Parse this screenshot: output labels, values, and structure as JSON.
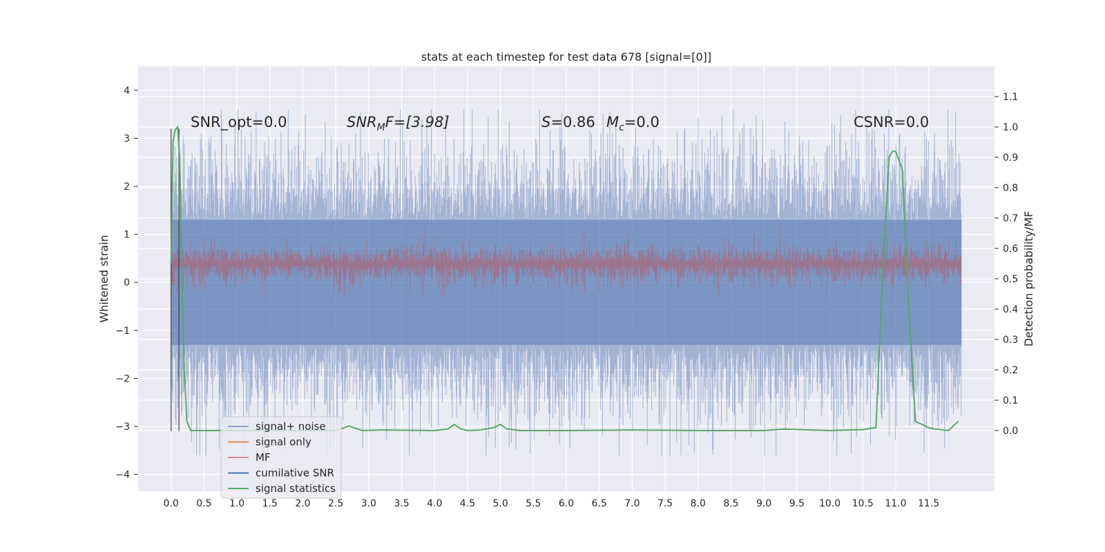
{
  "chart_data": {
    "type": "line",
    "title": "stats at each timestep for test data 678 [signal=[0]]",
    "ylabel": "Whitened strain",
    "ylabel_right": "Detection probability/MF",
    "x_ticks": [
      "0.0",
      "0.5",
      "1.0",
      "1.5",
      "2.0",
      "2.5",
      "3.0",
      "3.5",
      "4.0",
      "4.5",
      "5.0",
      "5.5",
      "6.0",
      "6.5",
      "7.0",
      "7.5",
      "8.0",
      "8.5",
      "9.0",
      "9.5",
      "10.0",
      "10.5",
      "11.0",
      "11.5"
    ],
    "xlim": [
      -0.5,
      12.5
    ],
    "ylim_left": [
      -4.35,
      4.5
    ],
    "y_ticks_left": [
      -4,
      -3,
      -2,
      -1,
      0,
      1,
      2,
      3,
      4
    ],
    "ylim_right": [
      -0.2,
      1.2
    ],
    "y_ticks_right": [
      "0.0",
      "0.1",
      "0.2",
      "0.3",
      "0.4",
      "0.5",
      "0.6",
      "0.7",
      "0.8",
      "0.9",
      "1.0",
      "1.1"
    ],
    "grid": true,
    "legend_position": "lower-left",
    "annotations": {
      "snr_opt": "SNR_opt=0.0",
      "snr_mf_label": "SNR",
      "snr_mf_sub": "M",
      "snr_mf_value": "F=[3.98]",
      "s_label": "S",
      "s_value": "=0.86",
      "mc_label": "M",
      "mc_sub": "c",
      "mc_value": "=0.0",
      "csnr": "CSNR=0.0"
    },
    "series": [
      {
        "name": "signal+ noise",
        "color": "#4c72b0",
        "x_range": [
          0,
          12
        ],
        "amplitude": "±3.5 (noise)"
      },
      {
        "name": "signal only",
        "color": "#dd8452",
        "values": []
      },
      {
        "name": "MF",
        "color": "#c44e52",
        "x_range": [
          0,
          12
        ],
        "approx_range_right_axis": [
          0.5,
          0.65
        ]
      },
      {
        "name": "cumilative SNR",
        "color": "#4c72b0",
        "values": []
      },
      {
        "name": "signal statistics",
        "color": "#55a868",
        "x": [
          0.0,
          0.03,
          0.06,
          0.1,
          0.13,
          0.16,
          0.2,
          0.24,
          0.3,
          0.5,
          1.0,
          2.0,
          2.5,
          2.7,
          2.9,
          3.2,
          4.0,
          4.2,
          4.3,
          4.4,
          4.5,
          4.7,
          4.9,
          5.0,
          5.1,
          5.3,
          6.0,
          7.0,
          8.0,
          9.0,
          9.3,
          9.6,
          10.0,
          10.3,
          10.5,
          10.7,
          10.8,
          10.9,
          10.95,
          11.0,
          11.1,
          11.2,
          11.3,
          11.5,
          11.6,
          11.8,
          11.95
        ],
        "values": [
          0.55,
          0.95,
          0.99,
          1.0,
          0.9,
          0.55,
          0.2,
          0.03,
          0.0,
          0.0,
          0.0,
          0.0,
          0.0,
          0.015,
          0.0,
          0.002,
          0.0,
          0.005,
          0.02,
          0.005,
          0.0,
          0.002,
          0.01,
          0.02,
          0.005,
          0.0,
          0.0,
          0.002,
          0.0,
          0.0,
          0.005,
          0.003,
          0.0,
          0.002,
          0.003,
          0.01,
          0.5,
          0.9,
          0.92,
          0.92,
          0.86,
          0.4,
          0.03,
          0.01,
          0.005,
          0.0,
          0.03
        ]
      }
    ],
    "vertical_lines": [
      0.0,
      0.12
    ]
  }
}
